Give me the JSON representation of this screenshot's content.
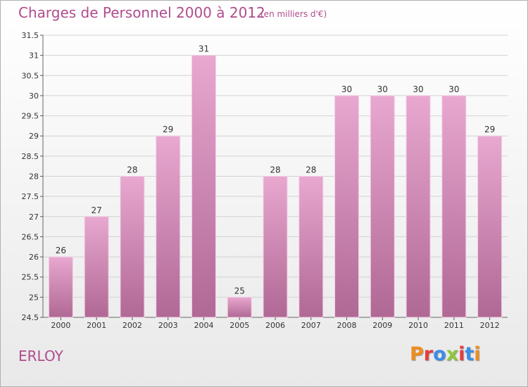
{
  "header": {
    "title": "Charges de Personnel 2000 à 2012",
    "subtitle": "(en milliers d'€)"
  },
  "footer": {
    "town": "ERLOY",
    "logo": "Proxiti",
    "logo_colors": [
      "#f08c1c",
      "#e83c3c",
      "#3c8ce8",
      "#8cc83c",
      "#e83c3c",
      "#3c8ce8",
      "#f08c1c"
    ]
  },
  "chart_data": {
    "type": "bar",
    "title": "Charges de Personnel 2000 à 2012",
    "subtitle": "(en milliers d'€)",
    "xlabel": "",
    "ylabel": "",
    "categories": [
      "2000",
      "2001",
      "2002",
      "2003",
      "2004",
      "2005",
      "2006",
      "2007",
      "2008",
      "2009",
      "2010",
      "2011",
      "2012"
    ],
    "values": [
      26,
      27,
      28,
      29,
      31,
      25,
      28,
      28,
      30,
      30,
      30,
      30,
      29
    ],
    "ylim": [
      24.5,
      31.5
    ],
    "yticks": [
      "24.5",
      "25",
      "25.5",
      "26",
      "26.5",
      "27",
      "27.5",
      "28",
      "28.5",
      "29",
      "29.5",
      "30",
      "30.5",
      "31",
      "31.5"
    ],
    "grid": true,
    "bar_color_top": "#e8a8d0",
    "bar_color_bottom": "#b06894"
  }
}
